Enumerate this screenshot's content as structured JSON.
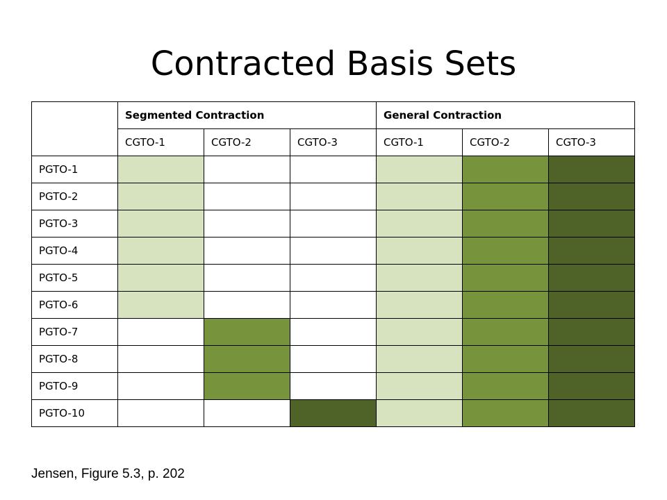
{
  "title": "Contracted Basis Sets",
  "colors": {
    "white": "#ffffff",
    "light": "#d7e3bf",
    "medium": "#77933c",
    "dark": "#4f6228"
  },
  "table": {
    "group_headers": [
      "Segmented Contraction",
      "General Contraction"
    ],
    "sub_headers": [
      "CGTO-1",
      "CGTO-2",
      "CGTO-3",
      "CGTO-1",
      "CGTO-2",
      "CGTO-3"
    ],
    "rows": [
      {
        "label": "PGTO-1",
        "fills": [
          "light",
          "white",
          "white",
          "light",
          "medium",
          "dark"
        ]
      },
      {
        "label": "PGTO-2",
        "fills": [
          "light",
          "white",
          "white",
          "light",
          "medium",
          "dark"
        ]
      },
      {
        "label": "PGTO-3",
        "fills": [
          "light",
          "white",
          "white",
          "light",
          "medium",
          "dark"
        ]
      },
      {
        "label": "PGTO-4",
        "fills": [
          "light",
          "white",
          "white",
          "light",
          "medium",
          "dark"
        ]
      },
      {
        "label": "PGTO-5",
        "fills": [
          "light",
          "white",
          "white",
          "light",
          "medium",
          "dark"
        ]
      },
      {
        "label": "PGTO-6",
        "fills": [
          "light",
          "white",
          "white",
          "light",
          "medium",
          "dark"
        ]
      },
      {
        "label": "PGTO-7",
        "fills": [
          "white",
          "medium",
          "white",
          "light",
          "medium",
          "dark"
        ]
      },
      {
        "label": "PGTO-8",
        "fills": [
          "white",
          "medium",
          "white",
          "light",
          "medium",
          "dark"
        ]
      },
      {
        "label": "PGTO-9",
        "fills": [
          "white",
          "medium",
          "white",
          "light",
          "medium",
          "dark"
        ]
      },
      {
        "label": "PGTO-10",
        "fills": [
          "white",
          "white",
          "dark",
          "light",
          "medium",
          "dark"
        ]
      }
    ]
  },
  "citation": "Jensen, Figure 5.3, p. 202"
}
